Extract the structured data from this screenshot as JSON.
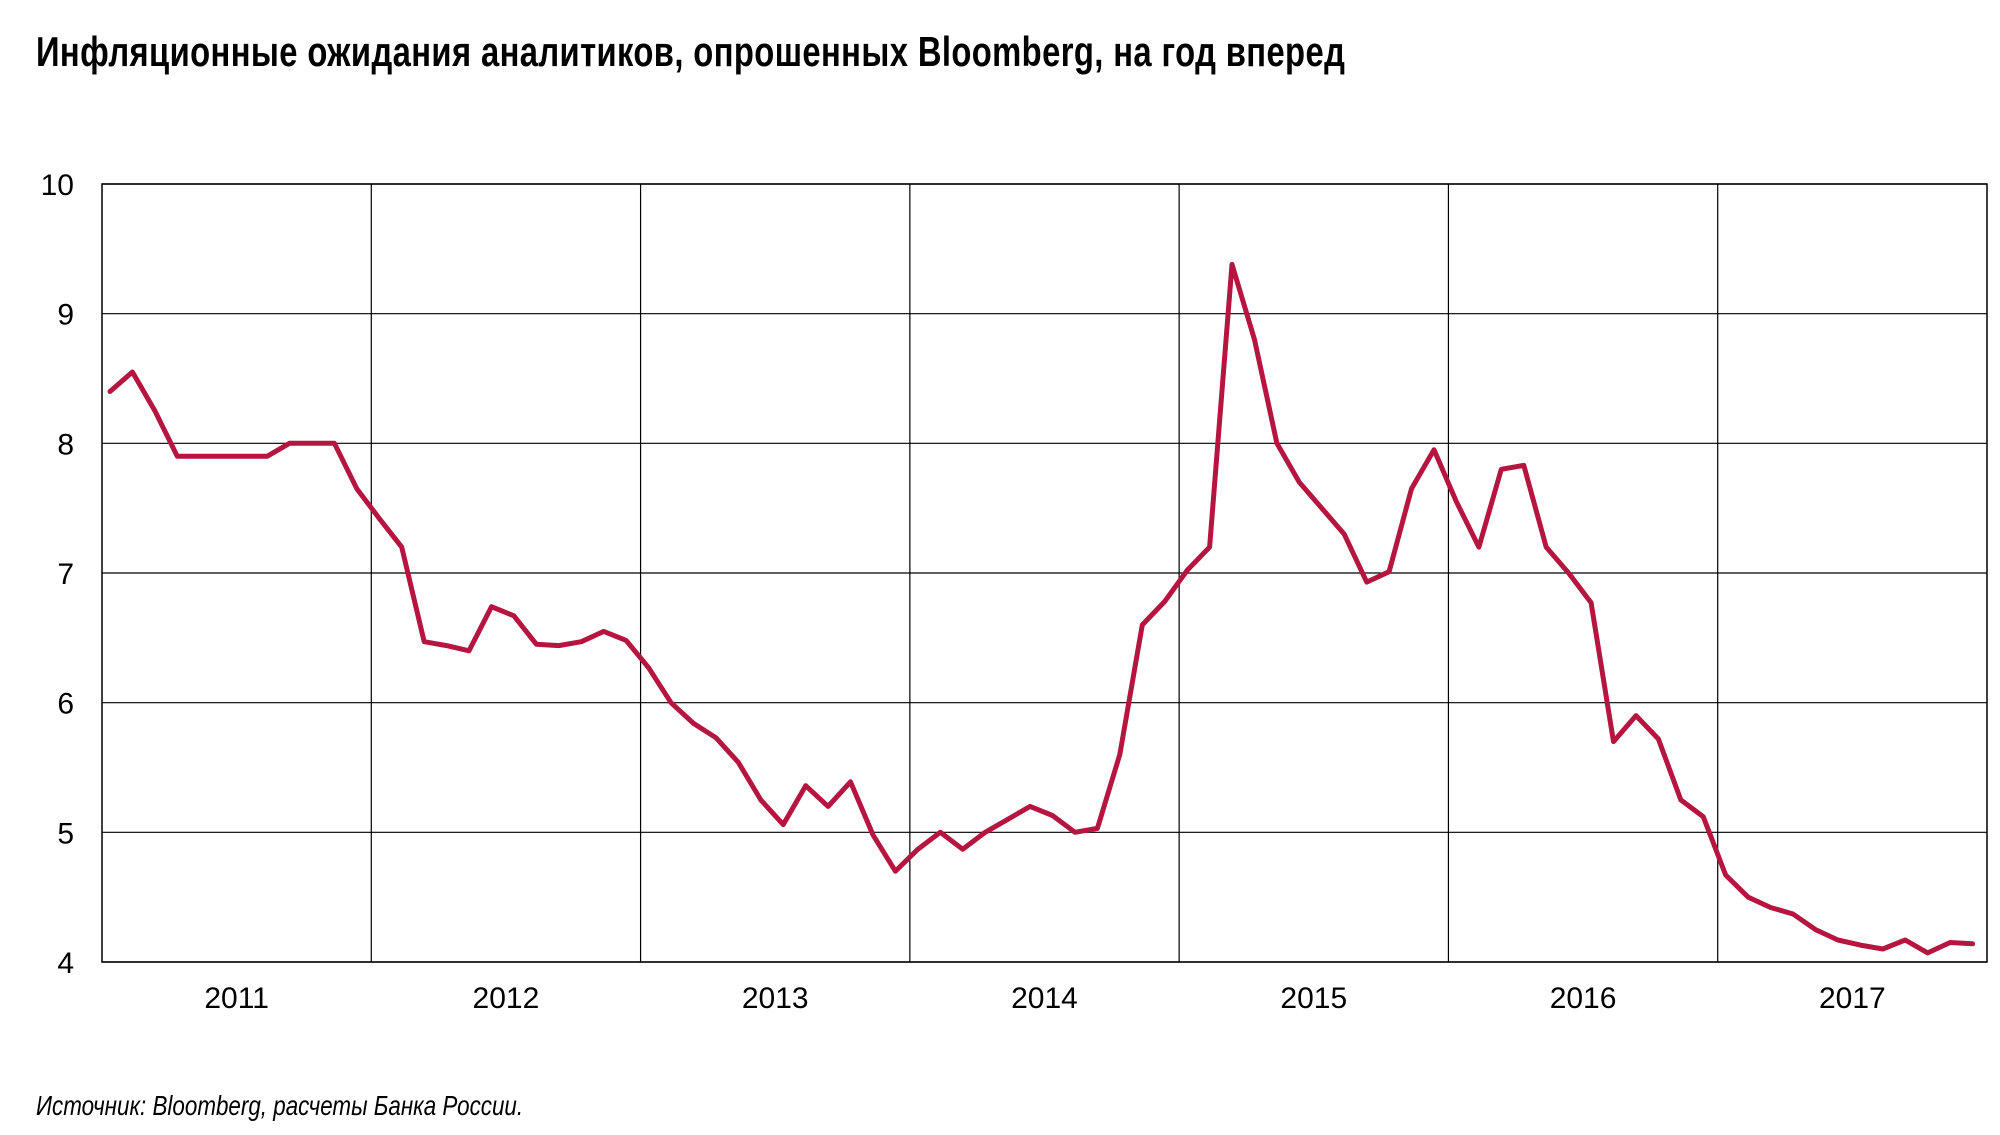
{
  "chart_data": {
    "type": "line",
    "title": "Инфляционные ожидания аналитиков, опрошенных Bloomberg, на год вперед",
    "source": "Источник: Bloomberg, расчеты Банка России.",
    "xlabel": "",
    "ylabel": "",
    "ylim": [
      4,
      10
    ],
    "yticks": [
      "4",
      "5",
      "6",
      "7",
      "8",
      "9",
      "10"
    ],
    "year_labels": [
      "2011",
      "2012",
      "2013",
      "2014",
      "2015",
      "2016",
      "2017"
    ],
    "grid": true,
    "line_color": "#B5153F",
    "series": [
      {
        "points": [
          [
            "2010-07",
            8.4
          ],
          [
            "2010-08",
            8.55
          ],
          [
            "2010-09",
            8.25
          ],
          [
            "2010-10",
            7.9
          ],
          [
            "2010-11",
            7.9
          ],
          [
            "2010-12",
            7.9
          ],
          [
            "2011-01",
            7.9
          ],
          [
            "2011-02",
            7.9
          ],
          [
            "2011-03",
            8.0
          ],
          [
            "2011-04",
            8.0
          ],
          [
            "2011-05",
            8.0
          ],
          [
            "2011-06",
            7.65
          ],
          [
            "2011-07",
            7.42
          ],
          [
            "2011-08",
            7.2
          ],
          [
            "2011-09",
            6.47
          ],
          [
            "2011-10",
            6.44
          ],
          [
            "2011-11",
            6.4
          ],
          [
            "2011-12",
            6.74
          ],
          [
            "2012-01",
            6.67
          ],
          [
            "2012-02",
            6.45
          ],
          [
            "2012-03",
            6.44
          ],
          [
            "2012-04",
            6.47
          ],
          [
            "2012-05",
            6.55
          ],
          [
            "2012-06",
            6.48
          ],
          [
            "2012-07",
            6.27
          ],
          [
            "2012-08",
            6.0
          ],
          [
            "2012-09",
            5.84
          ],
          [
            "2012-10",
            5.73
          ],
          [
            "2012-11",
            5.54
          ],
          [
            "2012-12",
            5.25
          ],
          [
            "2013-01",
            5.06
          ],
          [
            "2013-02",
            5.36
          ],
          [
            "2013-03",
            5.2
          ],
          [
            "2013-04",
            5.39
          ],
          [
            "2013-05",
            4.98
          ],
          [
            "2013-06",
            4.7
          ],
          [
            "2013-07",
            4.87
          ],
          [
            "2013-08",
            5.0
          ],
          [
            "2013-09",
            4.87
          ],
          [
            "2013-10",
            5.0
          ],
          [
            "2013-11",
            5.1
          ],
          [
            "2013-12",
            5.2
          ],
          [
            "2014-01",
            5.13
          ],
          [
            "2014-02",
            5.0
          ],
          [
            "2014-03",
            5.03
          ],
          [
            "2014-04",
            5.6
          ],
          [
            "2014-05",
            6.6
          ],
          [
            "2014-06",
            6.78
          ],
          [
            "2014-07",
            7.02
          ],
          [
            "2014-08",
            7.2
          ],
          [
            "2014-09",
            9.38
          ],
          [
            "2014-10",
            8.8
          ],
          [
            "2014-11",
            8.0
          ],
          [
            "2014-12",
            7.7
          ],
          [
            "2015-01",
            7.5
          ],
          [
            "2015-02",
            7.3
          ],
          [
            "2015-03",
            6.93
          ],
          [
            "2015-04",
            7.01
          ],
          [
            "2015-05",
            7.65
          ],
          [
            "2015-06",
            7.95
          ],
          [
            "2015-07",
            7.55
          ],
          [
            "2015-08",
            7.2
          ],
          [
            "2015-09",
            7.8
          ],
          [
            "2015-10",
            7.83
          ],
          [
            "2015-11",
            7.2
          ],
          [
            "2015-12",
            7.0
          ],
          [
            "2016-01",
            6.77
          ],
          [
            "2016-02",
            5.7
          ],
          [
            "2016-03",
            5.9
          ],
          [
            "2016-04",
            5.72
          ],
          [
            "2016-05",
            5.25
          ],
          [
            "2016-06",
            5.12
          ],
          [
            "2016-07",
            4.67
          ],
          [
            "2016-08",
            4.5
          ],
          [
            "2016-09",
            4.42
          ],
          [
            "2016-10",
            4.37
          ],
          [
            "2016-11",
            4.25
          ],
          [
            "2016-12",
            4.17
          ],
          [
            "2017-01",
            4.13
          ],
          [
            "2017-02",
            4.1
          ],
          [
            "2017-03",
            4.17
          ],
          [
            "2017-04",
            4.07
          ],
          [
            "2017-05",
            4.15
          ],
          [
            "2017-06",
            4.14
          ]
        ]
      }
    ]
  }
}
